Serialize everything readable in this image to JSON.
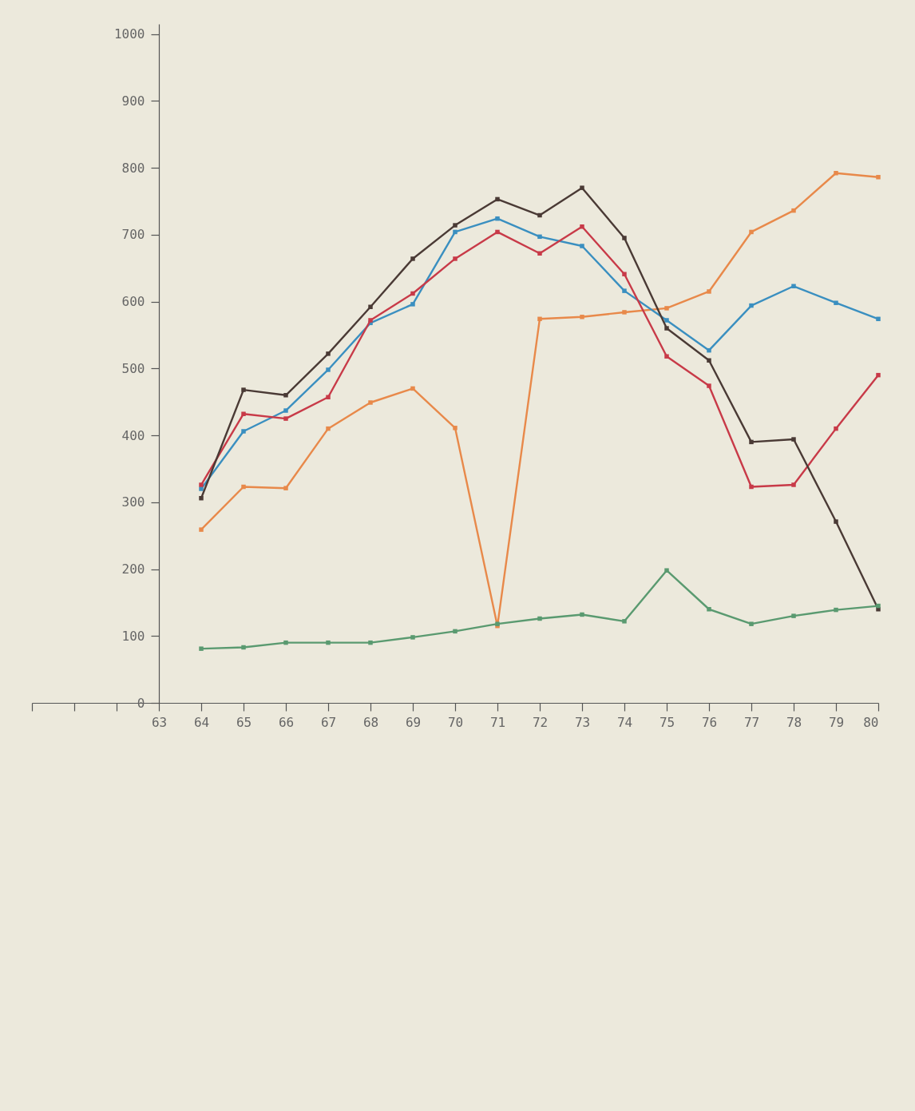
{
  "chart_data": {
    "type": "line",
    "x": [
      64,
      65,
      66,
      67,
      68,
      69,
      70,
      71,
      72,
      73,
      74,
      75,
      76,
      77,
      78,
      79,
      80
    ],
    "series": [
      {
        "color": "#e8894a",
        "values": [
          259,
          323,
          321,
          410,
          449,
          470,
          411,
          115,
          574,
          577,
          584,
          590,
          615,
          704,
          736,
          792,
          786
        ]
      },
      {
        "color": "#3a8fc0",
        "values": [
          320,
          406,
          437,
          498,
          568,
          596,
          704,
          724,
          697,
          683,
          616,
          572,
          527,
          594,
          623,
          598,
          574
        ]
      },
      {
        "color": "#c83a48",
        "values": [
          326,
          432,
          425,
          457,
          572,
          612,
          664,
          704,
          672,
          712,
          641,
          518,
          474,
          323,
          326,
          410,
          490
        ]
      },
      {
        "color": "#4a3a35",
        "values": [
          306,
          468,
          460,
          522,
          592,
          664,
          714,
          753,
          729,
          770,
          695,
          560,
          512,
          390,
          394,
          271,
          140
        ]
      },
      {
        "color": "#5a9a70",
        "values": [
          81,
          83,
          90,
          90,
          90,
          98,
          107,
          118,
          126,
          132,
          122,
          198,
          140,
          118,
          130,
          139,
          145
        ]
      }
    ],
    "xlim": [
      60,
      80
    ],
    "ylim": [
      0,
      1015
    ],
    "xticks": [
      {
        "value": 60,
        "label": null
      },
      {
        "value": 61,
        "label": null
      },
      {
        "value": 62,
        "label": null
      },
      63,
      64,
      65,
      66,
      67,
      68,
      69,
      70,
      71,
      72,
      73,
      74,
      75,
      76,
      77,
      78,
      79,
      80
    ],
    "yticks": [
      0,
      100,
      200,
      300,
      400,
      500,
      600,
      700,
      800,
      900,
      1000
    ],
    "marker": "square",
    "line_style": "solid",
    "grid": false
  }
}
